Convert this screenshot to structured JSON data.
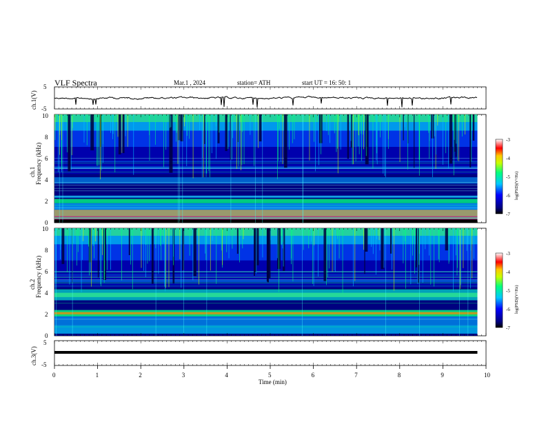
{
  "header": {
    "title": "VLF  Spectra",
    "date": "Mar.1  , 2024",
    "station": "station= ATH",
    "start": "start  UT  =    16: 50: 1"
  },
  "chart_data": [
    {
      "type": "line",
      "panel": "ch1-waveform",
      "ylabel": "ch.1(V)",
      "ylim": [
        -5,
        5
      ],
      "yticks": [
        "5",
        "-5"
      ],
      "xlim": [
        0,
        10
      ],
      "series": [
        {
          "values_approx_level": 0
        }
      ]
    },
    {
      "type": "heatmap",
      "panel": "ch1-spectrogram",
      "ylabel_top": "ch.1",
      "ylabel": "Frequency  (kHz)",
      "ylim": [
        0,
        10
      ],
      "yticks": [
        "0",
        "2",
        "4",
        "6",
        "8",
        "10"
      ],
      "xlim": [
        0,
        10
      ],
      "data_end_min": 9.8,
      "colorbar": {
        "label": "log(PSD)(V²/Hz)",
        "range": [
          -7,
          -3
        ],
        "ticks": [
          "-3",
          "-4",
          "-5",
          "-6",
          "-7"
        ]
      }
    },
    {
      "type": "heatmap",
      "panel": "ch2-spectrogram",
      "ylabel_top": "ch.2",
      "ylabel": "Frequency  (kHz)",
      "ylim": [
        0,
        10
      ],
      "yticks": [
        "0",
        "2",
        "4",
        "6",
        "8",
        "10"
      ],
      "xlim": [
        0,
        10
      ],
      "data_end_min": 9.8,
      "colorbar": {
        "label": "log(PSD)(V²/Hz)",
        "range": [
          -7,
          -3
        ],
        "ticks": [
          "-3",
          "-4",
          "-5",
          "-6",
          "-7"
        ]
      }
    },
    {
      "type": "line",
      "panel": "ch3-waveform",
      "ylabel": "ch.3(V)",
      "ylim": [
        -5,
        5
      ],
      "yticks": [
        "5",
        "-5"
      ],
      "xlim": [
        0,
        10
      ],
      "xlabel": "Time  (min)",
      "xticks": [
        "0",
        "1",
        "2",
        "3",
        "4",
        "5",
        "6",
        "7",
        "8",
        "9",
        "10"
      ],
      "series": [
        {
          "values_approx_level": -0.5
        }
      ]
    }
  ],
  "colors": {
    "background": "#000080",
    "dark": "#00003c",
    "low": "#0000c8",
    "mid": "#00c8ff",
    "high": "#00ff80",
    "peak": "#ffff00",
    "hot": "#ff0000"
  }
}
